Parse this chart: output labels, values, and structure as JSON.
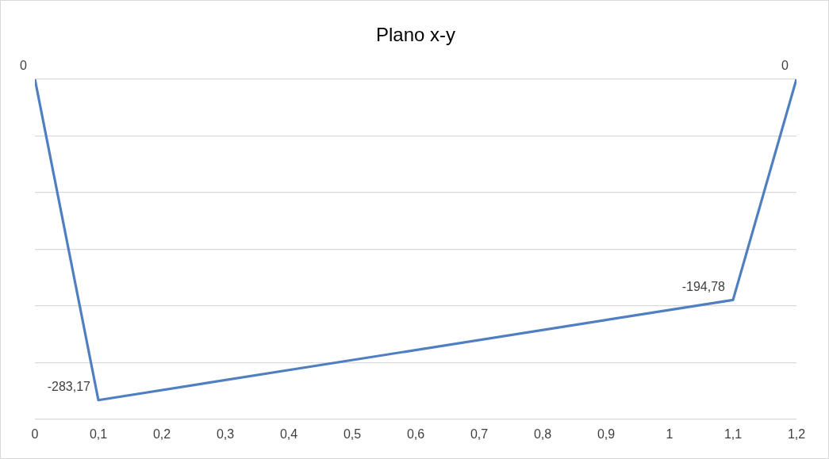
{
  "chart_data": {
    "type": "line",
    "title": "Plano x-y",
    "x": [
      0,
      0.1,
      1.1,
      1.2
    ],
    "series": [
      {
        "color": "#4f7fc0",
        "values": [
          0,
          -283.17,
          -194.78,
          0
        ],
        "value_labels": [
          "0",
          "-283,17",
          "-194,78",
          "0"
        ]
      }
    ],
    "xlim": [
      0,
      1.2
    ],
    "xticks": [
      {
        "value": 0,
        "label": "0"
      },
      {
        "value": 0.1,
        "label": "0,1"
      },
      {
        "value": 0.2,
        "label": "0,2"
      },
      {
        "value": 0.3,
        "label": "0,3"
      },
      {
        "value": 0.4,
        "label": "0,4"
      },
      {
        "value": 0.5,
        "label": "0,5"
      },
      {
        "value": 0.6,
        "label": "0,6"
      },
      {
        "value": 0.7,
        "label": "0,7"
      },
      {
        "value": 0.8,
        "label": "0,8"
      },
      {
        "value": 0.9,
        "label": "0,9"
      },
      {
        "value": 1,
        "label": "1"
      },
      {
        "value": 1.1,
        "label": "1,1"
      },
      {
        "value": 1.2,
        "label": "1,2"
      }
    ],
    "ylim": [
      -300,
      0
    ],
    "yticks": [
      {
        "value": -300,
        "label": null
      },
      {
        "value": -250,
        "label": null
      },
      {
        "value": -200,
        "label": null
      },
      {
        "value": -150,
        "label": null
      },
      {
        "value": -100,
        "label": null
      },
      {
        "value": -50,
        "label": null
      },
      {
        "value": 0,
        "label": null
      }
    ],
    "tick_labels": "x",
    "grid": "y",
    "legend": false,
    "marker": "none",
    "line_style": "solid"
  }
}
